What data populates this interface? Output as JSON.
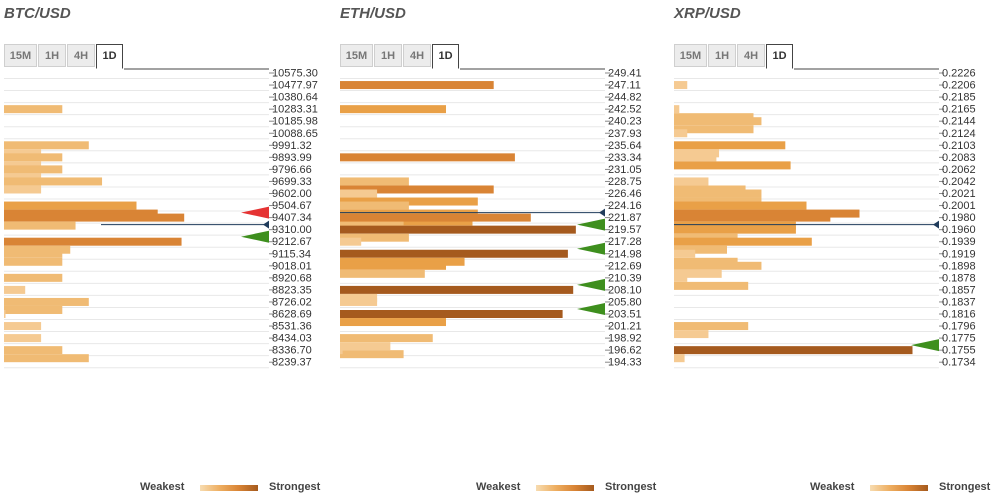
{
  "legend": {
    "weak": "Weakest",
    "strong": "Strongest"
  },
  "colors": {
    "bar_levels": [
      "#f5ca92",
      "#f0bb74",
      "#e9a047",
      "#d98435",
      "#a55a1e"
    ],
    "grid": "#e8e8e8",
    "price_line": "#1f3b5b",
    "arrow_red": "#e53333",
    "arrow_green": "#3e8f1e"
  },
  "panels": [
    {
      "title": "BTC/USD",
      "tabs": [
        "15M",
        "1H",
        "4H",
        "1D"
      ],
      "active_tab": "1D",
      "chart_data": {
        "type": "bar",
        "title": "BTC/USD",
        "orientation": "horizontal",
        "price_levels": [
          "10575.30",
          "10477.97",
          "10380.64",
          "10283.31",
          "10185.98",
          "10088.65",
          "9991.32",
          "9893.99",
          "9796.66",
          "9699.33",
          "9602.00",
          "9504.67",
          "9407.34",
          "9310.00",
          "9212.67",
          "9115.34",
          "9018.01",
          "8920.68",
          "8823.35",
          "8726.02",
          "8628.69",
          "8531.36",
          "8434.03",
          "8336.70",
          "8239.37"
        ],
        "current_price": 9310.0,
        "bars": [
          {
            "level": "10283.31",
            "values": [
              22
            ]
          },
          {
            "level": "9991.32",
            "values": [
              32,
              14
            ]
          },
          {
            "level": "9893.99",
            "values": [
              22,
              14
            ]
          },
          {
            "level": "9796.66",
            "values": [
              22,
              14
            ]
          },
          {
            "level": "9699.33",
            "values": [
              37,
              14
            ]
          },
          {
            "level": "9504.67",
            "values": [
              50,
              58
            ]
          },
          {
            "level": "9407.34",
            "values": [
              68,
              27
            ]
          },
          {
            "level": "9212.67",
            "values": [
              67,
              25
            ]
          },
          {
            "level": "9115.34",
            "values": [
              22,
              22
            ]
          },
          {
            "level": "8920.68",
            "values": [
              22
            ]
          },
          {
            "level": "8823.35",
            "values": [
              8
            ]
          },
          {
            "level": "8726.02",
            "values": [
              32,
              22
            ]
          },
          {
            "level": "8628.69",
            "values": [
              0
            ]
          },
          {
            "level": "8531.36",
            "values": [
              14
            ]
          },
          {
            "level": "8434.03",
            "values": [
              14
            ]
          },
          {
            "level": "8336.70",
            "values": [
              22,
              32
            ]
          }
        ],
        "strength_max": 100,
        "arrows": [
          {
            "level": "9407.34",
            "color": "red"
          },
          {
            "level": "9212.67",
            "color": "green"
          }
        ]
      }
    },
    {
      "title": "ETH/USD",
      "tabs": [
        "15M",
        "1H",
        "4H",
        "1D"
      ],
      "active_tab": "1D",
      "chart_data": {
        "type": "bar",
        "title": "ETH/USD",
        "orientation": "horizontal",
        "price_levels": [
          "249.41",
          "247.11",
          "244.82",
          "242.52",
          "240.23",
          "237.93",
          "235.64",
          "233.34",
          "231.05",
          "228.75",
          "226.46",
          "224.16",
          "221.87",
          "219.57",
          "217.28",
          "214.98",
          "212.69",
          "210.39",
          "208.10",
          "205.80",
          "203.51",
          "201.21",
          "198.92",
          "196.62",
          "194.33"
        ],
        "current_price": 221.87,
        "bars": [
          {
            "level": "247.11",
            "values": [
              58
            ]
          },
          {
            "level": "242.52",
            "values": [
              40
            ]
          },
          {
            "level": "233.34",
            "values": [
              66
            ]
          },
          {
            "level": "228.75",
            "values": [
              26,
              58
            ]
          },
          {
            "level": "226.46",
            "values": [
              14,
              52
            ]
          },
          {
            "level": "224.16",
            "values": [
              26,
              52,
              50
            ]
          },
          {
            "level": "221.87",
            "values": [
              72,
              24
            ]
          },
          {
            "level": "219.57",
            "values": [
              89,
              26
            ]
          },
          {
            "level": "217.28",
            "values": [
              8
            ]
          },
          {
            "level": "214.98",
            "values": [
              86,
              47
            ]
          },
          {
            "level": "212.69",
            "values": [
              40,
              32
            ]
          },
          {
            "level": "208.10",
            "values": [
              88,
              14
            ]
          },
          {
            "level": "205.80",
            "values": [
              14
            ]
          },
          {
            "level": "203.51",
            "values": [
              84,
              40
            ]
          },
          {
            "level": "198.92",
            "values": [
              35,
              19,
              24
            ]
          },
          {
            "level": "196.62",
            "values": [
              1
            ]
          }
        ],
        "strength_max": 100,
        "arrows": [
          {
            "level": "219.57",
            "color": "green"
          },
          {
            "level": "214.98",
            "color": "green"
          },
          {
            "level": "208.10",
            "color": "green"
          },
          {
            "level": "203.51",
            "color": "green"
          }
        ]
      }
    },
    {
      "title": "XRP/USD",
      "tabs": [
        "15M",
        "1H",
        "4H",
        "1D"
      ],
      "active_tab": "1D",
      "chart_data": {
        "type": "bar",
        "title": "XRP/USD",
        "orientation": "horizontal",
        "price_levels": [
          "0.2226",
          "0.2206",
          "0.2185",
          "0.2165",
          "0.2144",
          "0.2124",
          "0.2103",
          "0.2083",
          "0.2062",
          "0.2042",
          "0.2021",
          "0.2001",
          "0.1980",
          "0.1960",
          "0.1939",
          "0.1919",
          "0.1898",
          "0.1878",
          "0.1857",
          "0.1837",
          "0.1816",
          "0.1796",
          "0.1775",
          "0.1755",
          "0.1734"
        ],
        "current_price": 0.196,
        "bars": [
          {
            "level": "0.2206",
            "values": [
              5
            ]
          },
          {
            "level": "0.2165",
            "values": [
              2,
              30
            ]
          },
          {
            "level": "0.2144",
            "values": [
              33,
              30
            ]
          },
          {
            "level": "0.2124",
            "values": [
              5
            ]
          },
          {
            "level": "0.2103",
            "values": [
              42,
              17
            ]
          },
          {
            "level": "0.2083",
            "values": [
              16,
              44
            ]
          },
          {
            "level": "0.2042",
            "values": [
              13,
              27
            ]
          },
          {
            "level": "0.2021",
            "values": [
              33,
              33
            ]
          },
          {
            "level": "0.2001",
            "values": [
              50,
              70
            ]
          },
          {
            "level": "0.1980",
            "values": [
              59,
              46
            ]
          },
          {
            "level": "0.1960",
            "values": [
              46,
              24
            ]
          },
          {
            "level": "0.1939",
            "values": [
              52,
              20
            ]
          },
          {
            "level": "0.1919",
            "values": [
              8,
              24
            ]
          },
          {
            "level": "0.1898",
            "values": [
              33,
              18
            ]
          },
          {
            "level": "0.1878",
            "values": [
              5,
              28
            ]
          },
          {
            "level": "0.1796",
            "values": [
              28,
              13
            ]
          },
          {
            "level": "0.1755",
            "values": [
              90,
              4
            ]
          }
        ],
        "strength_max": 100,
        "arrows": [
          {
            "level": "0.1755",
            "color": "green"
          }
        ]
      }
    }
  ]
}
